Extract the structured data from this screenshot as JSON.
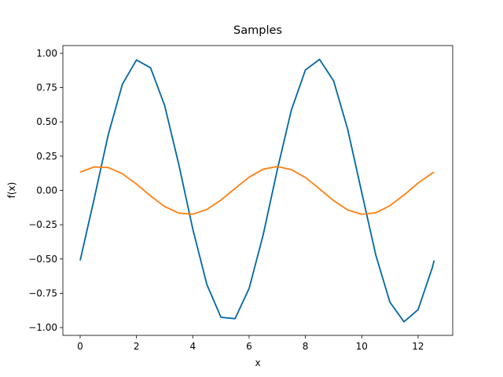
{
  "chart_data": {
    "type": "line",
    "title": "Samples",
    "x_label": "x",
    "y_label": "f(x)",
    "x": [
      0,
      0.5,
      1,
      1.5,
      2,
      2.5,
      3,
      3.5,
      4,
      4.5,
      5,
      5.5,
      6,
      6.5,
      7,
      7.5,
      8,
      8.5,
      9,
      9.5,
      10,
      10.5,
      11,
      11.5,
      12,
      12.5,
      12.57
    ],
    "series": [
      {
        "color": "#0068a0",
        "values": [
          -0.51,
          -0.058,
          0.409,
          0.775,
          0.952,
          0.895,
          0.62,
          0.192,
          -0.282,
          -0.686,
          -0.925,
          -0.935,
          -0.715,
          -0.323,
          0.15,
          0.586,
          0.879,
          0.956,
          0.8,
          0.447,
          -0.015,
          -0.472,
          -0.815,
          -0.958,
          -0.87,
          -0.567,
          -0.511
        ]
      },
      {
        "color": "#ff7f0e",
        "values": [
          0.134,
          0.172,
          0.167,
          0.122,
          0.047,
          -0.04,
          -0.117,
          -0.165,
          -0.173,
          -0.138,
          -0.07,
          0.015,
          0.097,
          0.155,
          0.175,
          0.152,
          0.094,
          0.012,
          -0.074,
          -0.142,
          -0.174,
          -0.163,
          -0.111,
          -0.033,
          0.054,
          0.126,
          0.134
        ]
      }
    ],
    "xlim": [
      -0.614,
      13.23
    ],
    "ylim": [
      -1.057,
      1.057
    ],
    "xticks": [
      0,
      2,
      4,
      6,
      8,
      10,
      12
    ],
    "yticks": [
      {
        "value": -1,
        "label": "−1.00"
      },
      {
        "value": -0.75,
        "label": "−0.75"
      },
      {
        "value": -0.5,
        "label": "−0.50"
      },
      {
        "value": -0.25,
        "label": "−0.25"
      },
      {
        "value": 0,
        "label": "0.00"
      },
      {
        "value": 0.25,
        "label": "0.25"
      },
      {
        "value": 0.5,
        "label": "0.50"
      },
      {
        "value": 0.75,
        "label": "0.75"
      },
      {
        "value": 1,
        "label": "1.00"
      }
    ],
    "grid": false
  }
}
